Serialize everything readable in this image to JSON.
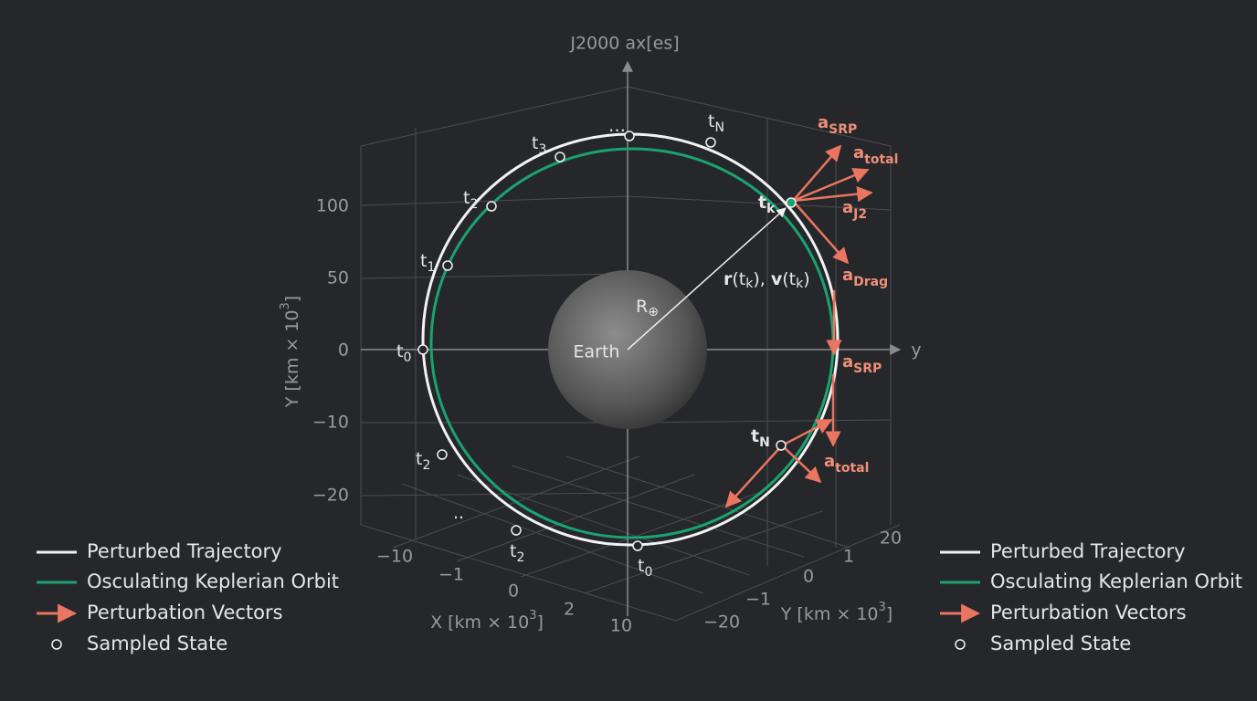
{
  "title": "J2000 ax[es]",
  "axis_arrow_label": "y",
  "y_axis": {
    "label": {
      "text": "Y [km × 10",
      "sup": "3",
      "tail": "]"
    },
    "ticks": [
      "100",
      "50",
      "0",
      "−10",
      "−20"
    ]
  },
  "x_axis": {
    "label": {
      "text": "X [km × 10",
      "sup": "3",
      "tail": "]"
    },
    "ticks": [
      "−10",
      "−1",
      "0",
      "2",
      "10"
    ]
  },
  "depth_axis": {
    "label": {
      "text": "Y [km × 10",
      "sup": "3",
      "tail": "]"
    },
    "ticks": [
      "20",
      "1",
      "0",
      "−1",
      "−20"
    ]
  },
  "earth": {
    "label": "Earth",
    "radius_label": {
      "base": "R",
      "sub": "⊕"
    }
  },
  "state_vector_label": [
    "r",
    "(t",
    "k",
    "), ",
    "v",
    "(t",
    "k",
    ")"
  ],
  "epochs": [
    {
      "base": "…"
    },
    {
      "base": "t",
      "sub": "N"
    },
    {
      "base": "t",
      "sub": "3"
    },
    {
      "base": "t",
      "sub": "2"
    },
    {
      "base": "t",
      "sub": "1"
    },
    {
      "base": "t",
      "sub": "0"
    },
    {
      "base": "t",
      "sub": "2"
    },
    {
      "base": "t",
      "sub": "2"
    },
    {
      "base": "t",
      "sub": "0"
    },
    {
      "base": "t",
      "sub": "k"
    },
    {
      "base": "t",
      "sub": "N"
    },
    {
      "base": ".."
    }
  ],
  "vectors": [
    {
      "base": "a",
      "sub": "SRP"
    },
    {
      "base": "a",
      "sub": "total"
    },
    {
      "base": "a",
      "sub": "J2"
    },
    {
      "base": "a",
      "sub": "Drag"
    },
    {
      "base": "a",
      "sub": "SRP"
    },
    {
      "base": "a",
      "sub": "total"
    }
  ],
  "legend_left": [
    "Perturbed Trajectory",
    "Osculating Keplerian Orbit",
    "Perturbation Vectors",
    "Sampled State"
  ],
  "legend_right": [
    "Perturbed Trajectory",
    "Osculating Keplerian Orbit",
    "Perturbation Vectors",
    "Sampled State"
  ]
}
